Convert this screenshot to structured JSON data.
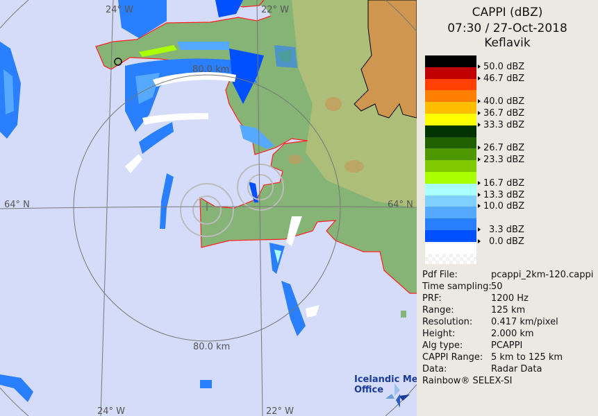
{
  "header": {
    "product": "CAPPI (dBZ)",
    "datetime": "07:30 / 27-Oct-2018",
    "station": "Keflavik"
  },
  "legend": {
    "bands": [
      "#000000",
      "#c00000",
      "#ff4000",
      "#ff8000",
      "#ffbf00",
      "#ffff00",
      "#003300",
      "#206000",
      "#509800",
      "#80c800",
      "#aaff00",
      "#aaffff",
      "#80d0ff",
      "#55aaff",
      "#2a7fff",
      "#0050ff",
      "#ffffff"
    ],
    "labels": [
      "50.0 dBZ",
      "46.7 dBZ",
      "40.0 dBZ",
      "36.7 dBZ",
      "33.3 dBZ",
      "26.7 dBZ",
      "23.3 dBZ",
      "16.7 dBZ",
      "13.3 dBZ",
      "10.0 dBZ",
      "3.3 dBZ",
      "0.0 dBZ"
    ]
  },
  "info": [
    {
      "label": "Pdf File:",
      "value": "pcappi_2km-120.cappi"
    },
    {
      "label": "Time sampling:",
      "value": "50"
    },
    {
      "label": "PRF:",
      "value": "1200 Hz"
    },
    {
      "label": "Range:",
      "value": "125 km"
    },
    {
      "label": "Resolution:",
      "value": "0.417 km/pixel"
    },
    {
      "label": "Height:",
      "value": "2.000 km"
    },
    {
      "label": "Alg type:",
      "value": "PCAPPI"
    },
    {
      "label": "CAPPI Range:",
      "value": "5 km to 125 km"
    },
    {
      "label": "Data:",
      "value": "Radar Data"
    }
  ],
  "footer": "Rainbow® SELEX-SI",
  "map": {
    "lon_labels": [
      "24° W",
      "22° W"
    ],
    "lat_label": "64° N",
    "range_label": "80.0 km",
    "logo_line1": "Icelandic Met",
    "logo_line2": "Office",
    "colors": {
      "sea": "#d4dcfa",
      "land": "#7fb070",
      "highland": "#c89a58",
      "coast": "#ff2020",
      "grid": "#777777"
    }
  }
}
